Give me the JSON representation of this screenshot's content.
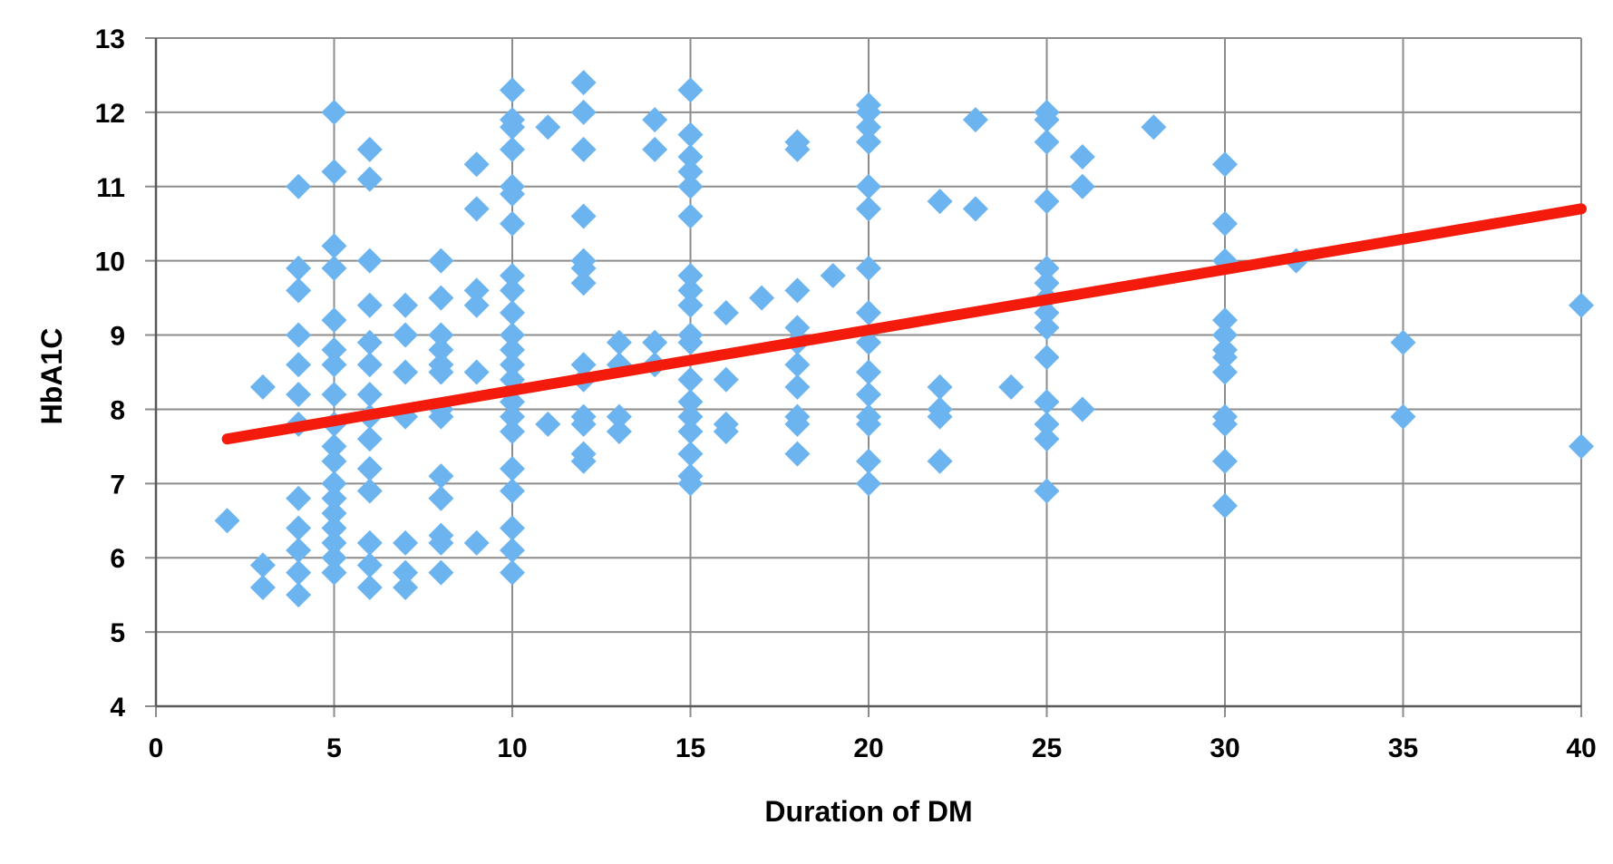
{
  "chart_data": {
    "type": "scatter",
    "title": "",
    "xlabel": "Duration of DM",
    "ylabel": "HbA1C",
    "xlim": [
      0,
      40
    ],
    "ylim": [
      4,
      13
    ],
    "xticks": [
      "0",
      "5",
      "10",
      "15",
      "20",
      "25",
      "30",
      "35",
      "40"
    ],
    "yticks": [
      "4",
      "5",
      "6",
      "7",
      "8",
      "9",
      "10",
      "11",
      "12",
      "13"
    ],
    "grid": true,
    "legend": "none",
    "colors": {
      "points": "#6cb4f0",
      "trendline": "#f41b0c",
      "grid": "#8c8c8c",
      "axis": "#595959"
    },
    "trendline": {
      "x": [
        2,
        40
      ],
      "y": [
        7.6,
        10.7
      ]
    },
    "series": [
      {
        "points": [
          [
            2,
            6.5
          ],
          [
            3,
            8.3
          ],
          [
            3,
            5.9
          ],
          [
            3,
            5.6
          ],
          [
            4,
            11.0
          ],
          [
            4,
            9.9
          ],
          [
            4,
            9.6
          ],
          [
            4,
            9.0
          ],
          [
            4,
            8.6
          ],
          [
            4,
            8.2
          ],
          [
            4,
            7.8
          ],
          [
            4,
            6.8
          ],
          [
            4,
            6.4
          ],
          [
            4,
            6.1
          ],
          [
            4,
            5.8
          ],
          [
            4,
            5.5
          ],
          [
            5,
            12.0
          ],
          [
            5,
            11.2
          ],
          [
            5,
            10.2
          ],
          [
            5,
            9.9
          ],
          [
            5,
            9.2
          ],
          [
            5,
            8.8
          ],
          [
            5,
            8.6
          ],
          [
            5,
            8.2
          ],
          [
            5,
            7.8
          ],
          [
            5,
            7.5
          ],
          [
            5,
            7.3
          ],
          [
            5,
            7.0
          ],
          [
            5,
            6.8
          ],
          [
            5,
            6.6
          ],
          [
            5,
            6.4
          ],
          [
            5,
            6.2
          ],
          [
            5,
            6.0
          ],
          [
            5,
            5.8
          ],
          [
            6,
            11.5
          ],
          [
            6,
            11.1
          ],
          [
            6,
            10.0
          ],
          [
            6,
            9.4
          ],
          [
            6,
            8.9
          ],
          [
            6,
            8.6
          ],
          [
            6,
            8.2
          ],
          [
            6,
            7.9
          ],
          [
            6,
            7.6
          ],
          [
            6,
            7.2
          ],
          [
            6,
            6.9
          ],
          [
            6,
            6.2
          ],
          [
            6,
            5.9
          ],
          [
            6,
            5.6
          ],
          [
            7,
            9.4
          ],
          [
            7,
            9.0
          ],
          [
            7,
            8.5
          ],
          [
            7,
            7.9
          ],
          [
            7,
            6.2
          ],
          [
            7,
            5.8
          ],
          [
            7,
            5.6
          ],
          [
            8,
            10.0
          ],
          [
            8,
            9.5
          ],
          [
            8,
            9.0
          ],
          [
            8,
            8.8
          ],
          [
            8,
            8.6
          ],
          [
            8,
            8.5
          ],
          [
            8,
            8.0
          ],
          [
            8,
            7.9
          ],
          [
            8,
            7.1
          ],
          [
            8,
            6.8
          ],
          [
            8,
            6.3
          ],
          [
            8,
            6.2
          ],
          [
            8,
            5.8
          ],
          [
            9,
            11.3
          ],
          [
            9,
            10.7
          ],
          [
            9,
            9.6
          ],
          [
            9,
            9.4
          ],
          [
            9,
            8.5
          ],
          [
            9,
            6.2
          ],
          [
            10,
            12.3
          ],
          [
            10,
            11.9
          ],
          [
            10,
            11.8
          ],
          [
            10,
            11.5
          ],
          [
            10,
            11.0
          ],
          [
            10,
            10.9
          ],
          [
            10,
            10.5
          ],
          [
            10,
            9.8
          ],
          [
            10,
            9.6
          ],
          [
            10,
            9.3
          ],
          [
            10,
            9.0
          ],
          [
            10,
            8.8
          ],
          [
            10,
            8.6
          ],
          [
            10,
            8.4
          ],
          [
            10,
            8.1
          ],
          [
            10,
            7.9
          ],
          [
            10,
            7.7
          ],
          [
            10,
            7.2
          ],
          [
            10,
            6.9
          ],
          [
            10,
            6.4
          ],
          [
            10,
            6.1
          ],
          [
            10,
            5.8
          ],
          [
            11,
            11.8
          ],
          [
            11,
            7.8
          ],
          [
            12,
            12.4
          ],
          [
            12,
            12.0
          ],
          [
            12,
            11.5
          ],
          [
            12,
            10.6
          ],
          [
            12,
            10.0
          ],
          [
            12,
            9.9
          ],
          [
            12,
            9.7
          ],
          [
            12,
            8.6
          ],
          [
            12,
            8.4
          ],
          [
            12,
            7.9
          ],
          [
            12,
            7.8
          ],
          [
            12,
            7.4
          ],
          [
            12,
            7.3
          ],
          [
            13,
            8.9
          ],
          [
            13,
            8.6
          ],
          [
            13,
            7.9
          ],
          [
            13,
            7.7
          ],
          [
            14,
            11.9
          ],
          [
            14,
            11.5
          ],
          [
            14,
            8.9
          ],
          [
            14,
            8.6
          ],
          [
            15,
            12.3
          ],
          [
            15,
            11.7
          ],
          [
            15,
            11.4
          ],
          [
            15,
            11.2
          ],
          [
            15,
            11.0
          ],
          [
            15,
            10.6
          ],
          [
            15,
            9.8
          ],
          [
            15,
            9.6
          ],
          [
            15,
            9.4
          ],
          [
            15,
            9.0
          ],
          [
            15,
            8.9
          ],
          [
            15,
            8.4
          ],
          [
            15,
            8.1
          ],
          [
            15,
            7.9
          ],
          [
            15,
            7.7
          ],
          [
            15,
            7.4
          ],
          [
            15,
            7.1
          ],
          [
            15,
            7.0
          ],
          [
            16,
            9.3
          ],
          [
            16,
            8.4
          ],
          [
            16,
            7.8
          ],
          [
            16,
            7.7
          ],
          [
            17,
            9.5
          ],
          [
            18,
            11.6
          ],
          [
            18,
            11.5
          ],
          [
            18,
            9.6
          ],
          [
            18,
            9.1
          ],
          [
            18,
            8.9
          ],
          [
            18,
            8.6
          ],
          [
            18,
            8.3
          ],
          [
            18,
            7.9
          ],
          [
            18,
            7.8
          ],
          [
            18,
            7.4
          ],
          [
            19,
            9.8
          ],
          [
            20,
            12.1
          ],
          [
            20,
            12.0
          ],
          [
            20,
            11.8
          ],
          [
            20,
            11.6
          ],
          [
            20,
            11.0
          ],
          [
            20,
            10.7
          ],
          [
            20,
            9.9
          ],
          [
            20,
            9.3
          ],
          [
            20,
            8.9
          ],
          [
            20,
            8.5
          ],
          [
            20,
            8.2
          ],
          [
            20,
            7.9
          ],
          [
            20,
            7.8
          ],
          [
            20,
            7.3
          ],
          [
            20,
            7.0
          ],
          [
            22,
            10.8
          ],
          [
            22,
            8.3
          ],
          [
            22,
            8.0
          ],
          [
            22,
            7.9
          ],
          [
            22,
            7.3
          ],
          [
            23,
            11.9
          ],
          [
            23,
            10.7
          ],
          [
            24,
            8.3
          ],
          [
            25,
            12.0
          ],
          [
            25,
            11.9
          ],
          [
            25,
            11.6
          ],
          [
            25,
            10.8
          ],
          [
            25,
            9.9
          ],
          [
            25,
            9.7
          ],
          [
            25,
            9.5
          ],
          [
            25,
            9.3
          ],
          [
            25,
            9.1
          ],
          [
            25,
            8.7
          ],
          [
            25,
            8.1
          ],
          [
            25,
            7.8
          ],
          [
            25,
            7.6
          ],
          [
            25,
            6.9
          ],
          [
            26,
            11.4
          ],
          [
            26,
            11.0
          ],
          [
            26,
            8.0
          ],
          [
            28,
            11.8
          ],
          [
            30,
            11.3
          ],
          [
            30,
            10.5
          ],
          [
            30,
            10.0
          ],
          [
            30,
            9.2
          ],
          [
            30,
            9.0
          ],
          [
            30,
            8.8
          ],
          [
            30,
            8.7
          ],
          [
            30,
            8.5
          ],
          [
            30,
            7.9
          ],
          [
            30,
            7.8
          ],
          [
            30,
            7.3
          ],
          [
            30,
            6.7
          ],
          [
            32,
            10.0
          ],
          [
            35,
            8.9
          ],
          [
            35,
            7.9
          ],
          [
            40,
            9.4
          ],
          [
            40,
            7.5
          ]
        ]
      }
    ]
  }
}
